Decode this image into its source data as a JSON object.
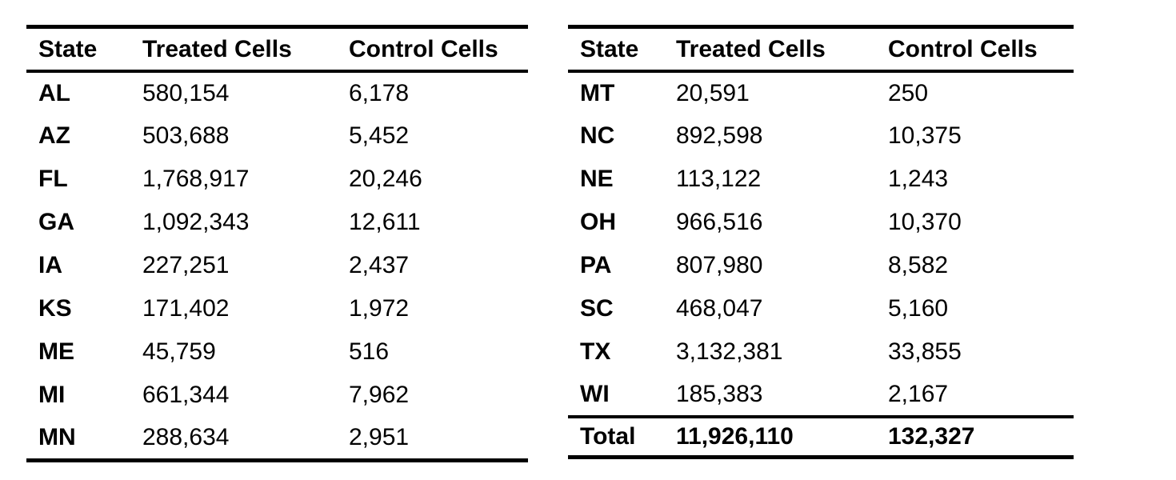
{
  "page": {
    "background_color": "#ffffff",
    "text_color": "#000000",
    "rule_color": "#000000"
  },
  "tables": [
    {
      "id": "left",
      "headers": [
        "State",
        "Treated Cells",
        "Control Cells"
      ],
      "rows": [
        {
          "state": "AL",
          "treated": "580,154",
          "control": "6,178"
        },
        {
          "state": "AZ",
          "treated": "503,688",
          "control": "5,452"
        },
        {
          "state": "FL",
          "treated": "1,768,917",
          "control": "20,246"
        },
        {
          "state": "GA",
          "treated": "1,092,343",
          "control": "12,611"
        },
        {
          "state": "IA",
          "treated": "227,251",
          "control": "2,437"
        },
        {
          "state": "KS",
          "treated": "171,402",
          "control": "1,972"
        },
        {
          "state": "ME",
          "treated": "45,759",
          "control": "516"
        },
        {
          "state": "MI",
          "treated": "661,344",
          "control": "7,962"
        },
        {
          "state": "MN",
          "treated": "288,634",
          "control": "2,951"
        }
      ]
    },
    {
      "id": "right",
      "headers": [
        "State",
        "Treated Cells",
        "Control Cells"
      ],
      "rows": [
        {
          "state": "MT",
          "treated": "20,591",
          "control": "250"
        },
        {
          "state": "NC",
          "treated": "892,598",
          "control": "10,375"
        },
        {
          "state": "NE",
          "treated": "113,122",
          "control": "1,243"
        },
        {
          "state": "OH",
          "treated": "966,516",
          "control": "10,370"
        },
        {
          "state": "PA",
          "treated": "807,980",
          "control": "8,582"
        },
        {
          "state": "SC",
          "treated": "468,047",
          "control": "5,160"
        },
        {
          "state": "TX",
          "treated": "3,132,381",
          "control": "33,855"
        },
        {
          "state": "WI",
          "treated": "185,383",
          "control": "2,167"
        }
      ],
      "total": {
        "label": "Total",
        "treated": "11,926,110",
        "control": "132,327"
      }
    }
  ]
}
